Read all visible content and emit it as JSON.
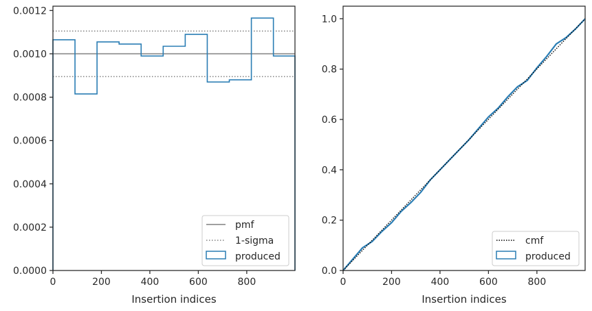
{
  "chart_data": [
    {
      "type": "step",
      "xlabel": "Insertion indices",
      "ylabel": "",
      "xlim": [
        0,
        999
      ],
      "ylim": [
        0,
        0.00122
      ],
      "grid": false,
      "x_ticks": [
        0,
        200,
        400,
        600,
        800
      ],
      "x_tick_labels": [
        "0",
        "200",
        "400",
        "600",
        "800"
      ],
      "y_ticks": [
        0,
        0.0002,
        0.0004,
        0.0006,
        0.0008,
        0.001,
        0.0012
      ],
      "y_tick_labels": [
        "0.0000",
        "0.0002",
        "0.0004",
        "0.0006",
        "0.0008",
        "0.0010",
        "0.0012"
      ],
      "legend_position": "lower-right",
      "bin_edges": [
        0,
        91,
        182,
        273,
        364,
        455,
        546,
        637,
        728,
        819,
        910,
        999
      ],
      "series": [
        {
          "name": "pmf",
          "style": "solid",
          "color": "#808080",
          "value": 0.001
        },
        {
          "name": "1-sigma",
          "style": "dotted",
          "color": "#808080",
          "values": [
            0.000895,
            0.001105
          ]
        },
        {
          "name": "produced",
          "style": "step",
          "color": "#2a7db4",
          "values": [
            0.001065,
            0.000815,
            0.001055,
            0.001045,
            0.00099,
            0.001035,
            0.00109,
            0.00087,
            0.00088,
            0.001165,
            0.00099
          ]
        }
      ]
    },
    {
      "type": "line",
      "xlabel": "Insertion indices",
      "ylabel": "",
      "xlim": [
        0,
        999
      ],
      "ylim": [
        0,
        1.05
      ],
      "grid": false,
      "x_ticks": [
        0,
        200,
        400,
        600,
        800
      ],
      "x_tick_labels": [
        "0",
        "200",
        "400",
        "600",
        "800"
      ],
      "y_ticks": [
        0,
        0.2,
        0.4,
        0.6,
        0.8,
        1.0
      ],
      "y_tick_labels": [
        "0.0",
        "0.2",
        "0.4",
        "0.6",
        "0.8",
        "1.0"
      ],
      "legend_position": "lower-right",
      "series": [
        {
          "name": "cmf",
          "style": "dotted",
          "color": "#000000",
          "x": [
            0,
            999
          ],
          "y": [
            0,
            1.0
          ]
        },
        {
          "name": "produced",
          "style": "solid",
          "color": "#2a7db4",
          "x": [
            0,
            40,
            80,
            120,
            160,
            200,
            240,
            280,
            320,
            360,
            400,
            440,
            480,
            520,
            560,
            600,
            640,
            680,
            720,
            760,
            800,
            840,
            880,
            920,
            960,
            999
          ],
          "y": [
            0,
            0.045,
            0.09,
            0.115,
            0.155,
            0.19,
            0.235,
            0.27,
            0.31,
            0.36,
            0.4,
            0.44,
            0.48,
            0.52,
            0.565,
            0.61,
            0.645,
            0.69,
            0.73,
            0.755,
            0.805,
            0.85,
            0.9,
            0.925,
            0.96,
            1.0
          ]
        }
      ]
    }
  ]
}
